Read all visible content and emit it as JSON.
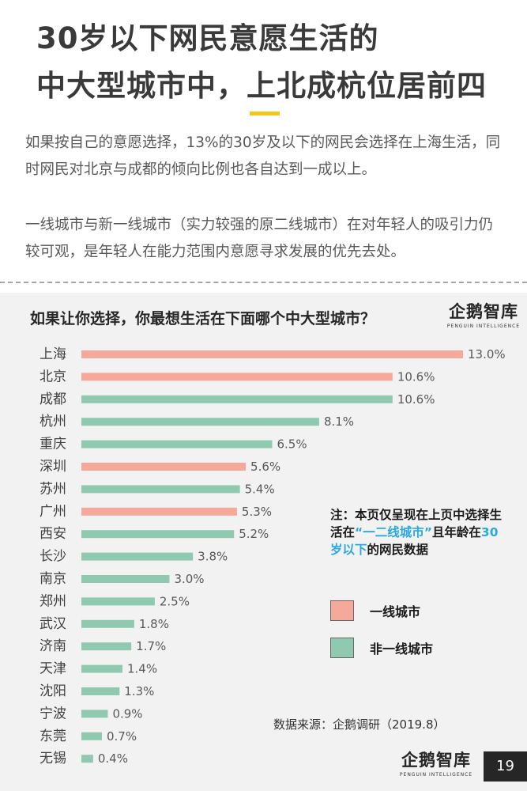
{
  "header": {
    "title_line1": "30岁以下网民意愿生活的",
    "title_line2": "中大型城市中，上北成杭位居前四"
  },
  "intro": {
    "paragraph1": "如果按自己的意愿选择，13%的30岁及以下的网民会选择在上海生活，同时网民对北京与成都的倾向比例也各自达到一成以上。",
    "paragraph2": "一线城市与新一线城市（实力较强的原二线城市）在对年轻人的吸引力仍较可观，是年轻人在能力范围内意愿寻求发展的优先去处。"
  },
  "brand": {
    "logo_text": "企鹅智库",
    "logo_subtitle": "PENGUIN INTELLIGENCE"
  },
  "note": {
    "prefix": "注：本页仅呈现在上页中选择生活在",
    "highlight1": "“一二线城市”",
    "middle": "且年龄在",
    "highlight2": "30岁以下",
    "suffix": "的网民数据"
  },
  "source": "数据来源：企鹅调研（2019.8）",
  "page_number": "19",
  "chart_data": {
    "type": "bar",
    "orientation": "horizontal",
    "title": "如果让你选择，你最想生活在下面哪个中大型城市？",
    "unit": "%",
    "categories": [
      "上海",
      "北京",
      "成都",
      "杭州",
      "重庆",
      "深圳",
      "苏州",
      "广州",
      "西安",
      "长沙",
      "南京",
      "郑州",
      "武汉",
      "济南",
      "天津",
      "沈阳",
      "宁波",
      "东莞",
      "无锡"
    ],
    "values": [
      13.0,
      10.6,
      10.6,
      8.1,
      6.5,
      5.6,
      5.4,
      5.3,
      5.2,
      3.8,
      3.0,
      2.5,
      1.8,
      1.7,
      1.4,
      1.3,
      0.9,
      0.7,
      0.4
    ],
    "value_labels": [
      "13.0%",
      "10.6%",
      "10.6%",
      "8.1%",
      "6.5%",
      "5.6%",
      "5.4%",
      "5.3%",
      "5.2%",
      "3.8%",
      "3.0%",
      "2.5%",
      "1.8%",
      "1.7%",
      "1.4%",
      "1.3%",
      "0.9%",
      "0.7%",
      "0.4%"
    ],
    "groups": [
      "tier1",
      "tier1",
      "other",
      "other",
      "other",
      "tier1",
      "other",
      "tier1",
      "other",
      "other",
      "other",
      "other",
      "other",
      "other",
      "other",
      "other",
      "other",
      "other",
      "other"
    ],
    "series": [
      {
        "key": "tier1",
        "name": "一线城市",
        "color": "#f4a99b"
      },
      {
        "key": "other",
        "name": "非一线城市",
        "color": "#8fc9b0"
      }
    ],
    "xlim": [
      0,
      13
    ],
    "legend_position": "right",
    "grid": false
  }
}
